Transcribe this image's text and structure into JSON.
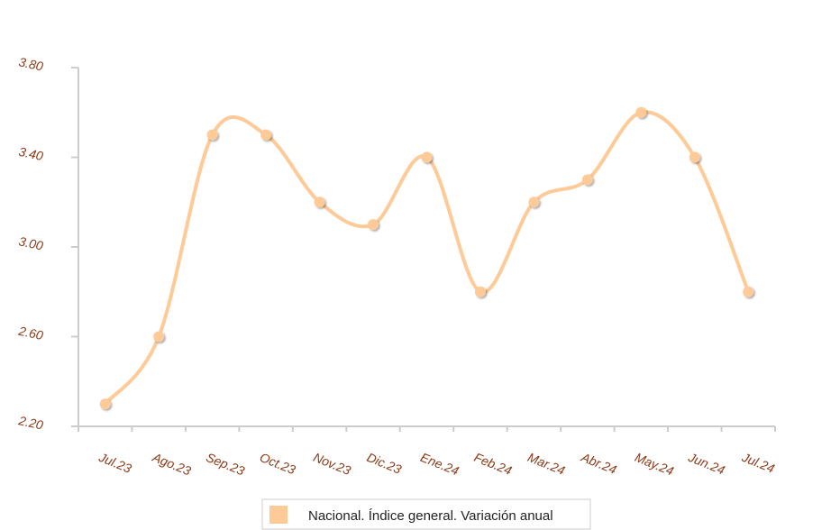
{
  "chart_data": {
    "type": "line",
    "categories": [
      "Jul.23",
      "Ago.23",
      "Sep.23",
      "Oct.23",
      "Nov.23",
      "Dic.23",
      "Ene.24",
      "Feb.24",
      "Mar.24",
      "Abr.24",
      "May.24",
      "Jun.24",
      "Jul.24"
    ],
    "series": [
      {
        "name": "Nacional. Índice general. Variación anual",
        "color": "#fdca98",
        "values": [
          2.3,
          2.6,
          3.5,
          3.5,
          3.2,
          3.1,
          3.4,
          2.8,
          3.2,
          3.3,
          3.6,
          3.4,
          2.8
        ]
      }
    ],
    "ylim": [
      2.2,
      3.8
    ],
    "yticks": [
      {
        "value": 2.2,
        "label": "2.20"
      },
      {
        "value": 2.6,
        "label": "2.60"
      },
      {
        "value": 3.0,
        "label": "3.00"
      },
      {
        "value": 3.4,
        "label": "3.40"
      },
      {
        "value": 3.8,
        "label": "3.80"
      }
    ]
  }
}
